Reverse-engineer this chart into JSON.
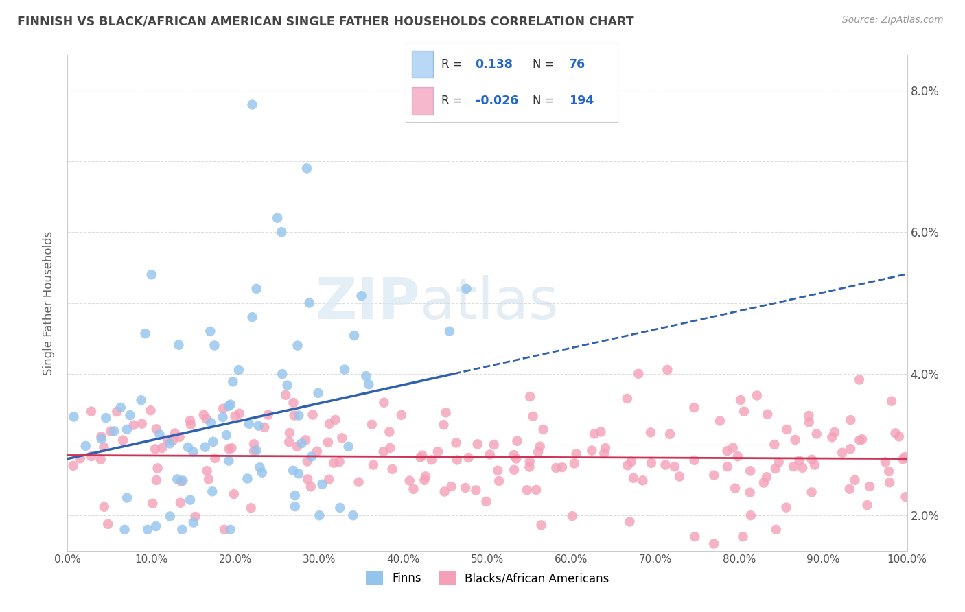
{
  "title": "FINNISH VS BLACK/AFRICAN AMERICAN SINGLE FATHER HOUSEHOLDS CORRELATION CHART",
  "source": "Source: ZipAtlas.com",
  "ylabel": "Single Father Households",
  "finn_R": 0.138,
  "finn_N": 76,
  "baa_R": -0.026,
  "baa_N": 194,
  "xlim": [
    0.0,
    1.0
  ],
  "ylim": [
    0.015,
    0.085
  ],
  "yticks_right": [
    0.02,
    0.04,
    0.06,
    0.08
  ],
  "ytick_right_labels": [
    "2.0%",
    "4.0%",
    "6.0%",
    "8.0%"
  ],
  "yticks_left": [
    0.02,
    0.03,
    0.04,
    0.05,
    0.06,
    0.07,
    0.08
  ],
  "xticks": [
    0.0,
    0.1,
    0.2,
    0.3,
    0.4,
    0.5,
    0.6,
    0.7,
    0.8,
    0.9,
    1.0
  ],
  "finn_color": "#93c4ec",
  "baa_color": "#f5a0b8",
  "finn_line_color": "#3060b0",
  "baa_line_color": "#cc3355",
  "watermark_zip": "ZIP",
  "watermark_atlas": "atlas",
  "background_color": "#ffffff",
  "grid_color": "#dddddd",
  "title_color": "#444444",
  "legend_text_color": "#2266cc",
  "finn_legend_box": "#b8d8f5",
  "baa_legend_box": "#f5b8cc",
  "finn_line_start_y": 0.028,
  "finn_line_end_y": 0.04,
  "finn_line_solid_end_x": 0.46,
  "baa_line_start_y": 0.0285,
  "baa_line_end_y": 0.028
}
